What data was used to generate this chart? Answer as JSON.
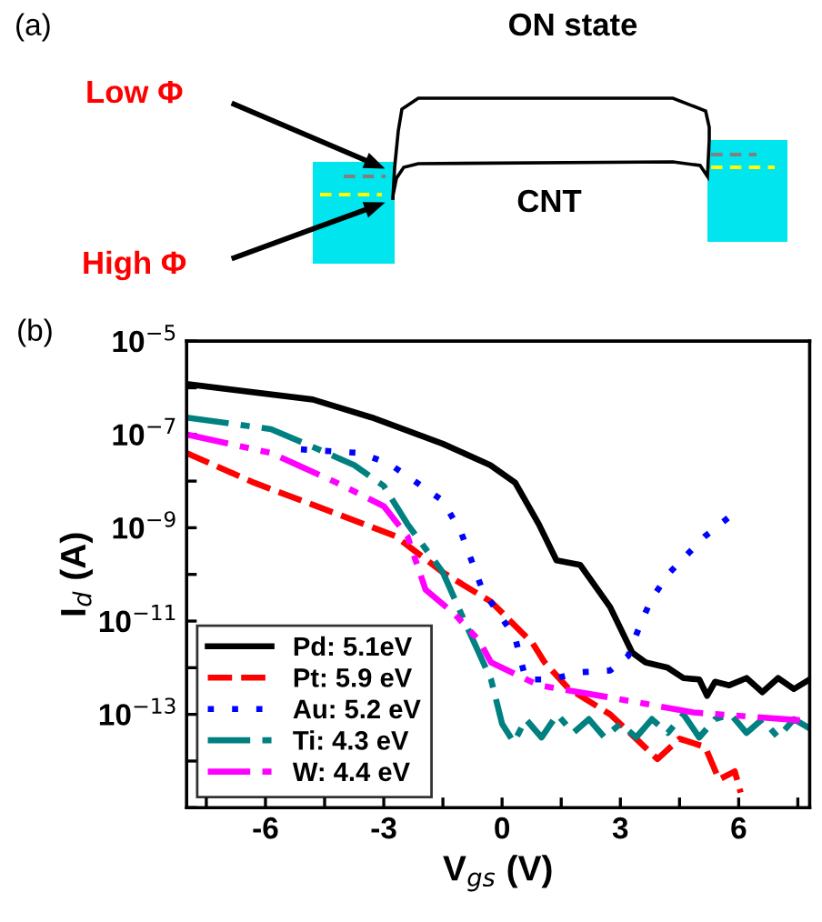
{
  "chart_data": [
    {
      "type": "other",
      "title": "(a)",
      "annotations": [
        "ON state",
        "Low Φ",
        "High Φ",
        "CNT"
      ]
    },
    {
      "type": "line",
      "title": "(b)",
      "xlabel": "V$_{gs}$ (V)",
      "ylabel": "I$_{d}$ (A)",
      "log": "y",
      "grid": false,
      "legend": "bottom left",
      "xlim": [
        -8,
        7.8
      ],
      "ylim": [
        1e-15,
        1e-05
      ],
      "xticks": [
        {
          "value": -7.5,
          "label": null
        },
        -6,
        {
          "value": -4.5,
          "label": null
        },
        -3,
        {
          "value": -1.5,
          "label": null
        },
        0,
        {
          "value": 1.5,
          "label": null
        },
        3,
        {
          "value": 4.5,
          "label": null
        },
        6,
        {
          "value": 7.5,
          "label": null
        }
      ],
      "yticks": [
        {
          "value": 1e-15,
          "label": null
        },
        {
          "value": 1e-14,
          "label": null
        },
        {
          "value": 1e-13,
          "label": "10$^{−13}$"
        },
        {
          "value": 1e-12,
          "label": null
        },
        {
          "value": 1e-11,
          "label": "10$^{−11}$"
        },
        {
          "value": 1e-10,
          "label": null
        },
        {
          "value": 1e-09,
          "label": "10$^{−9}$"
        },
        {
          "value": 1e-08,
          "label": null
        },
        {
          "value": 1e-07,
          "label": "10$^{−7}$"
        },
        {
          "value": 1e-06,
          "label": null
        },
        {
          "value": 1e-05,
          "label": "10$^{−5}$"
        }
      ],
      "series": [
        {
          "name": "Pd: 5.1eV",
          "color": "#000000",
          "line_style": "solid",
          "x": [
            -8,
            -4.8,
            -3.3,
            -1.5,
            -0.3,
            0.33,
            0.93,
            1.38,
            1.98,
            2.74,
            3.3,
            3.64,
            4.2,
            4.6,
            5.0,
            5.2,
            5.4,
            5.76,
            6.2,
            6.6,
            7.0,
            7.4,
            7.8
          ],
          "values": [
            1.2e-06,
            5.6e-07,
            2.3e-07,
            6.3e-08,
            2.2e-08,
            9.3e-09,
            1.2e-09,
            2e-10,
            1.6e-10,
            2e-11,
            2.1e-12,
            1.3e-12,
            1e-12,
            6e-13,
            5.6e-13,
            2.5e-13,
            5e-13,
            4.2e-13,
            6e-13,
            3e-13,
            6e-13,
            3.5e-13,
            5.6e-13
          ]
        },
        {
          "name": "Pt: 5.9 eV",
          "color": "#ff0000",
          "line_style": "dashed",
          "x": [
            -8,
            -6.3,
            -4.05,
            -2.7,
            -1.5,
            -0.28,
            0.78,
            1.08,
            1.68,
            2.74,
            3.4,
            3.94,
            4.5,
            5.15,
            5.5,
            5.9,
            6.05
          ],
          "values": [
            4e-08,
            9.3e-09,
            1.8e-09,
            6.6e-10,
            1.1e-10,
            2.6e-11,
            3.3e-12,
            1.3e-12,
            3.6e-13,
            1e-13,
            3e-14,
            1.1e-14,
            3e-14,
            2e-14,
            4e-15,
            6e-15,
            2.1e-15
          ]
        },
        {
          "name": "Au: 5.2 eV",
          "color": "#0000ff",
          "line_style": "dotted",
          "x": [
            -5.1,
            -3.6,
            -2.84,
            -1.5,
            -1.03,
            -0.5,
            0.33,
            0.6,
            1.23,
            2.0,
            2.74,
            3.2,
            3.49,
            3.79,
            4.25,
            5.15,
            5.76
          ],
          "values": [
            4.8e-08,
            4e-08,
            2.3e-08,
            3.8e-09,
            7.6e-10,
            4.7e-11,
            4.5e-12,
            5.6e-13,
            5.6e-13,
            8e-13,
            8.7e-13,
            1.8e-12,
            7.9e-12,
            3e-11,
            1.1e-10,
            6.6e-10,
            1.7e-09
          ]
        },
        {
          "name": "Ti: 4.3 eV",
          "color": "#008080",
          "line_style": "dashdot",
          "x": [
            -8,
            -5.86,
            -4.8,
            -3.75,
            -3.0,
            -2.4,
            -1.5,
            -0.9,
            -0.28,
            0.0,
            0.3,
            0.6,
            1.0,
            1.4,
            1.8,
            2.2,
            2.6,
            3.0,
            3.4,
            3.8,
            4.2,
            4.6,
            5.0,
            5.4,
            5.8,
            6.2,
            6.6,
            7.0,
            7.4,
            7.8
          ],
          "values": [
            2.3e-07,
            1.3e-07,
            5.4e-08,
            2.2e-08,
            7.9e-09,
            1.2e-09,
            1.1e-10,
            7.9e-12,
            5.6e-13,
            6.3e-14,
            2.5e-14,
            7.9e-14,
            3.2e-14,
            1e-13,
            4e-14,
            7.9e-14,
            3.2e-14,
            6.3e-14,
            3.2e-14,
            7.9e-14,
            4e-14,
            1e-13,
            3.2e-14,
            7.9e-14,
            1e-13,
            4e-14,
            7.9e-14,
            3.2e-14,
            7.9e-14,
            5e-14
          ]
        },
        {
          "name": "W: 4.4 eV",
          "color": "#ff00ff",
          "line_style": "dashdotdot",
          "x": [
            -8,
            -5.86,
            -4.2,
            -3.0,
            -2.4,
            -1.94,
            -1.2,
            -0.58,
            -0.28,
            0.93,
            2.74,
            4.85,
            7.8
          ],
          "values": [
            1e-07,
            4e-08,
            9.3e-09,
            2.9e-09,
            6.6e-10,
            4.7e-11,
            1.4e-11,
            3.8e-12,
            1.3e-12,
            4.2e-13,
            2.3e-13,
            1.1e-13,
            7.2e-14
          ]
        }
      ]
    }
  ]
}
